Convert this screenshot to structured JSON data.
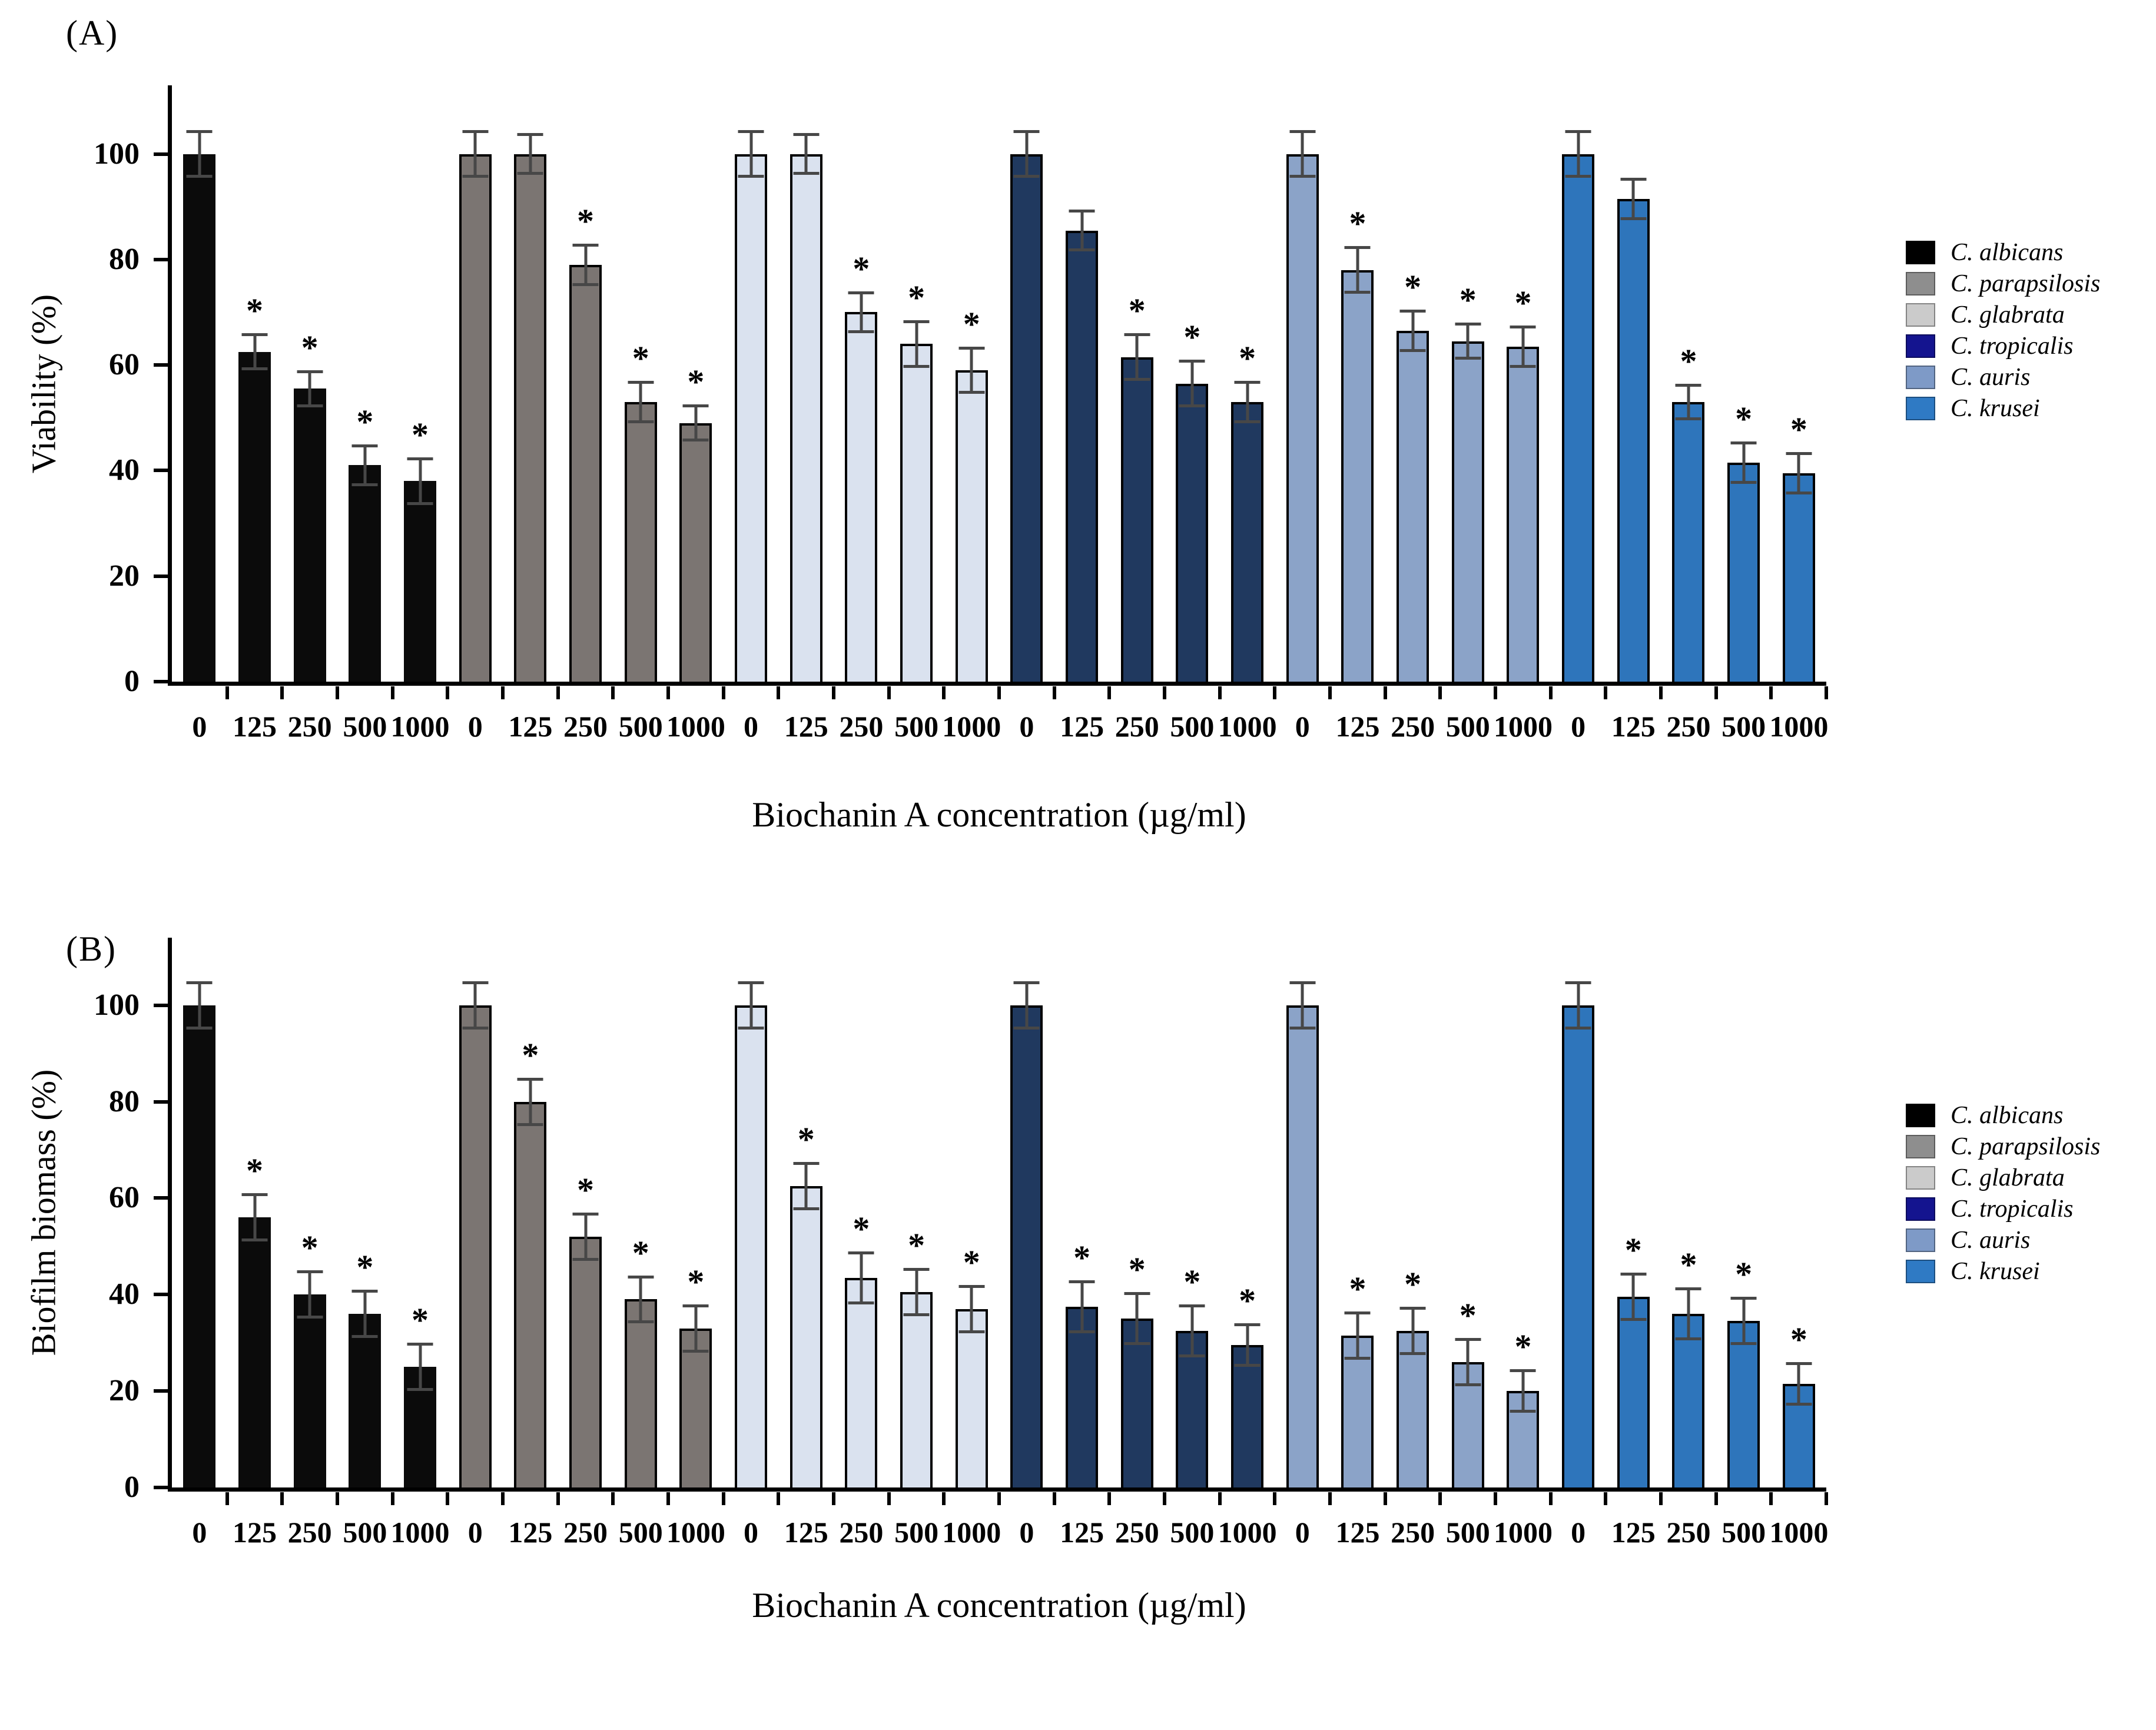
{
  "figure": {
    "background": "#ffffff",
    "panels": [
      {
        "label": "(A)",
        "ylabel": "Viability (%)",
        "xlabel": "Biochanin A concentration (µg/ml)"
      },
      {
        "label": "(B)",
        "ylabel": "Biofilm biomass (%)",
        "xlabel": "Biochanin A concentration (µg/ml)"
      }
    ],
    "significance_marker": "*",
    "error_bar_color": "#474747",
    "axis_color": "#000000"
  },
  "chart_data": [
    {
      "type": "bar",
      "panel": "A",
      "panel_label": "(A)",
      "ylabel": "Viability (%)",
      "xlabel": "Biochanin A concentration (µg/ml)",
      "ylim": [
        0,
        113
      ],
      "yticks": [
        0,
        20,
        40,
        60,
        80,
        100
      ],
      "grid": false,
      "legend_position": "right",
      "x_tick_labels_per_group": [
        "0",
        "125",
        "250",
        "500",
        "1000"
      ],
      "categories_ug_ml": [
        0,
        125,
        250,
        500,
        1000
      ],
      "series": [
        {
          "name": "C. albicans",
          "bar_color": "#0b0b0b",
          "legend_color": "#000000",
          "values": [
            100,
            62.5,
            55.5,
            41,
            38
          ],
          "errors": [
            4.5,
            3.5,
            3.5,
            4,
            4.5
          ],
          "significant": [
            false,
            true,
            true,
            true,
            true
          ]
        },
        {
          "name": "C. parapsilosis",
          "bar_color": "#7b7572",
          "legend_color": "#8e8e8e",
          "values": [
            100,
            100,
            79,
            53,
            49
          ],
          "errors": [
            4.5,
            4,
            4,
            4,
            3.5
          ],
          "significant": [
            false,
            false,
            true,
            true,
            true
          ]
        },
        {
          "name": "C. glabrata",
          "bar_color": "#dae2ef",
          "legend_color": "#cbcbcb",
          "values": [
            100,
            100,
            70,
            64,
            59
          ],
          "errors": [
            4.5,
            4,
            4,
            4.5,
            4.5
          ],
          "significant": [
            false,
            false,
            true,
            true,
            true
          ]
        },
        {
          "name": "C. tropicalis",
          "bar_color": "#20395f",
          "legend_color": "#14148f",
          "values": [
            100,
            85.5,
            61.5,
            56.5,
            53
          ],
          "errors": [
            4.5,
            4,
            4.5,
            4.5,
            4
          ],
          "significant": [
            false,
            false,
            true,
            true,
            true
          ]
        },
        {
          "name": "C. auris",
          "bar_color": "#8ba3c8",
          "legend_color": "#7e9ac7",
          "values": [
            100,
            78,
            66.5,
            64.5,
            63.5
          ],
          "errors": [
            4.5,
            4.5,
            4,
            3.5,
            4
          ],
          "significant": [
            false,
            true,
            true,
            true,
            true
          ]
        },
        {
          "name": "C. krusei",
          "bar_color": "#2e75bb",
          "legend_color": "#2f7ac4",
          "values": [
            100,
            91.5,
            53,
            41.5,
            39.5
          ],
          "errors": [
            4.5,
            4,
            3.5,
            4,
            4
          ],
          "significant": [
            false,
            false,
            true,
            true,
            true
          ]
        }
      ]
    },
    {
      "type": "bar",
      "panel": "B",
      "panel_label": "(B)",
      "ylabel": "Biofilm biomass (%)",
      "xlabel": "Biochanin A concentration (µg/ml)",
      "ylim": [
        0,
        114
      ],
      "yticks": [
        0,
        20,
        40,
        60,
        80,
        100
      ],
      "grid": false,
      "legend_position": "right",
      "x_tick_labels_per_group": [
        "0",
        "125",
        "250",
        "500",
        "1000"
      ],
      "categories_ug_ml": [
        0,
        125,
        250,
        500,
        1000
      ],
      "series": [
        {
          "name": "C. albicans",
          "bar_color": "#0b0b0b",
          "legend_color": "#000000",
          "values": [
            100,
            56,
            40,
            36,
            25
          ],
          "errors": [
            5,
            5,
            5,
            5,
            5
          ],
          "significant": [
            false,
            true,
            true,
            true,
            true
          ]
        },
        {
          "name": "C. parapsilosis",
          "bar_color": "#7b7572",
          "legend_color": "#8e8e8e",
          "values": [
            100,
            80,
            52,
            39,
            33
          ],
          "errors": [
            5,
            5,
            5,
            5,
            5
          ],
          "significant": [
            false,
            true,
            true,
            true,
            true
          ]
        },
        {
          "name": "C. glabrata",
          "bar_color": "#dae2ef",
          "legend_color": "#cbcbcb",
          "values": [
            100,
            62.5,
            43.5,
            40.5,
            37
          ],
          "errors": [
            5,
            5,
            5.5,
            5,
            5
          ],
          "significant": [
            false,
            true,
            true,
            true,
            true
          ]
        },
        {
          "name": "C. tropicalis",
          "bar_color": "#20395f",
          "legend_color": "#14148f",
          "values": [
            100,
            37.5,
            35,
            32.5,
            29.5
          ],
          "errors": [
            5,
            5.5,
            5.5,
            5.5,
            4.5
          ],
          "significant": [
            false,
            true,
            true,
            true,
            true
          ]
        },
        {
          "name": "C. auris",
          "bar_color": "#8ba3c8",
          "legend_color": "#7e9ac7",
          "values": [
            100,
            31.5,
            32.5,
            26,
            20
          ],
          "errors": [
            5,
            5,
            5,
            5,
            4.5
          ],
          "significant": [
            false,
            true,
            true,
            true,
            true
          ]
        },
        {
          "name": "C. krusei",
          "bar_color": "#2e75bb",
          "legend_color": "#2f7ac4",
          "values": [
            100,
            39.5,
            36,
            34.5,
            21.5
          ],
          "errors": [
            5,
            5,
            5.5,
            5,
            4.5
          ],
          "significant": [
            false,
            true,
            true,
            true,
            true
          ]
        }
      ]
    }
  ],
  "layout_note_visible_text_only": true
}
